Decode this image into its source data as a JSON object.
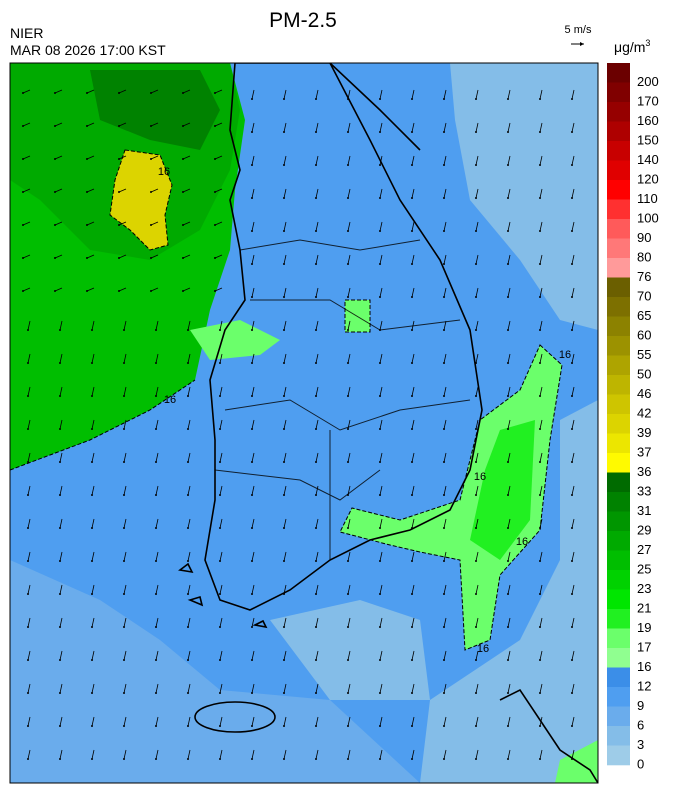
{
  "header": {
    "title": "PM-2.5",
    "agency": "NIER",
    "datetime": "MAR 08 2026 17:00 KST",
    "wind_scale": "5 m/s",
    "unit": {
      "base": "μg/m",
      "superscript": "3"
    }
  },
  "legend": {
    "labels": [
      200,
      170,
      160,
      150,
      140,
      120,
      110,
      100,
      90,
      80,
      76,
      70,
      65,
      60,
      55,
      50,
      46,
      42,
      39,
      37,
      36,
      33,
      31,
      29,
      27,
      25,
      23,
      21,
      19,
      17,
      16,
      12,
      9,
      6,
      3,
      0
    ],
    "colors": [
      "#6b0000",
      "#800000",
      "#960000",
      "#ae0000",
      "#c80000",
      "#e00000",
      "#ff0000",
      "#ff3030",
      "#ff5a5a",
      "#ff7878",
      "#ff9a9a",
      "#6b5f00",
      "#7d7000",
      "#8c8200",
      "#9c9200",
      "#aea400",
      "#beb500",
      "#cec500",
      "#dcd400",
      "#ece600",
      "#fffa00",
      "#006b00",
      "#008200",
      "#009600",
      "#00aa00",
      "#00be00",
      "#00d200",
      "#00e600",
      "#21f021",
      "#6bff6b",
      "#90ff90",
      "#3b8ee8",
      "#4f9ef0",
      "#6aacec",
      "#84bde8",
      "#9ecce8"
    ]
  },
  "map": {
    "contour_labels": [
      "16",
      "16",
      "16",
      "16",
      "16",
      "16"
    ]
  }
}
